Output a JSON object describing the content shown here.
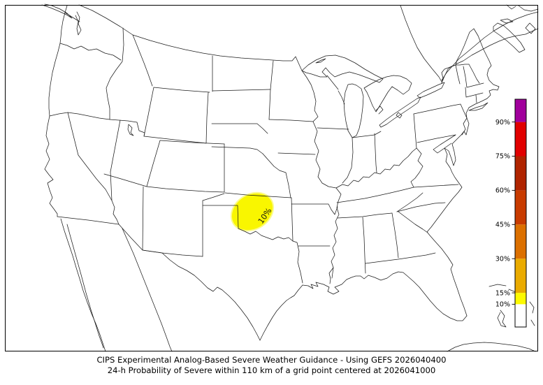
{
  "figure": {
    "caption_line1": "CIPS Experimental Analog-Based Severe Weather Guidance - Using GEFS 2026040400",
    "caption_line2": "24-h Probability of Severe within 110 km of a grid point centered at 2026041000",
    "background": "#ffffff",
    "frame_color": "#000000"
  },
  "map": {
    "line_color": "#1c1c1c",
    "contour_label": "10%",
    "contour_fill": "#f9f600"
  },
  "colorbar": {
    "unit": "%",
    "min": 0,
    "max": 100,
    "ticks": [
      90,
      75,
      60,
      45,
      30,
      15,
      10
    ],
    "tick_labels": [
      "90%",
      "75%",
      "60%",
      "45%",
      "30%",
      "15%",
      "10%"
    ],
    "levels": [
      {
        "from": 0,
        "to": 10,
        "color": "#ffffff"
      },
      {
        "from": 10,
        "to": 15,
        "color": "#fdfa00"
      },
      {
        "from": 15,
        "to": 30,
        "color": "#eaab00"
      },
      {
        "from": 30,
        "to": 45,
        "color": "#dc7000"
      },
      {
        "from": 45,
        "to": 60,
        "color": "#c83b00"
      },
      {
        "from": 60,
        "to": 75,
        "color": "#b02400"
      },
      {
        "from": 75,
        "to": 90,
        "color": "#e10000"
      },
      {
        "from": 90,
        "to": 100,
        "color": "#a1009c"
      }
    ]
  },
  "chart_data": {
    "type": "filled_contour_map",
    "title": "CIPS Experimental Analog-Based Severe Weather Guidance - Using GEFS 2026040400",
    "subtitle": "24-h Probability of Severe within 110 km of a grid point centered at 2026041000",
    "variable": "24-h probability of severe (%)",
    "scale_percent": [
      10,
      15,
      30,
      45,
      60,
      75,
      90
    ],
    "legend_position": "right",
    "contours": [
      {
        "value_percent": 10,
        "label": "10%",
        "region": "western Oklahoma, Oklahoma/Texas panhandles and far southern Kansas"
      }
    ]
  }
}
